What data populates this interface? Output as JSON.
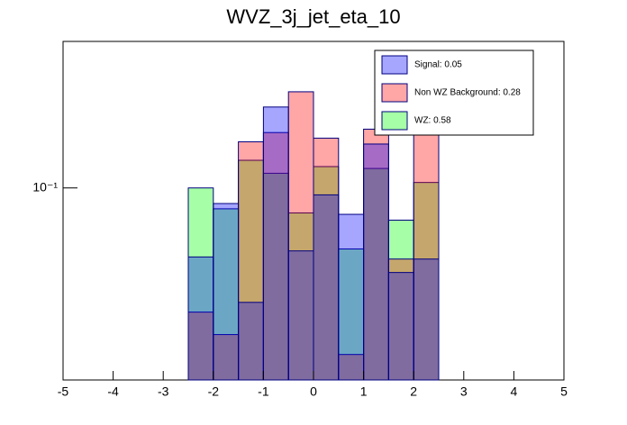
{
  "chart_data": {
    "type": "histogram",
    "title": "WVZ_3j_jet_eta_10",
    "bins": [
      -2.5,
      -2,
      -1.5,
      -1,
      -0.5,
      0,
      0.5,
      1,
      1.5,
      2,
      2.5
    ],
    "series": [
      {
        "name": "Signal: 0.05",
        "color": "#0000ff",
        "values": [
          0.054,
          0.087,
          0.036,
          0.206,
          0.057,
          0.094,
          0.079,
          0.148,
          0.047,
          0.053
        ]
      },
      {
        "name": "Non WZ Background: 0.28",
        "color": "#ff0000",
        "values": [
          0.033,
          0.027,
          0.151,
          0.164,
          0.236,
          0.156,
          0.0226,
          0.169,
          0.053,
          0.173
        ]
      },
      {
        "name": "WZ: 0.58",
        "color": "#00ff00",
        "values": [
          0.1,
          0.083,
          0.128,
          0.114,
          0.08,
          0.121,
          0.058,
          0.119,
          0.075,
          0.105
        ]
      }
    ],
    "xlim": [
      -5,
      5
    ],
    "xticks": [
      -5,
      -4,
      -3,
      -2,
      -1,
      0,
      1,
      2,
      3,
      4,
      5
    ],
    "ylim": [
      0.018,
      0.37
    ],
    "yticks": [
      {
        "value": 0.1,
        "label": "10⁻¹"
      }
    ],
    "log_y": true,
    "grid": false,
    "legend": "top-right"
  }
}
